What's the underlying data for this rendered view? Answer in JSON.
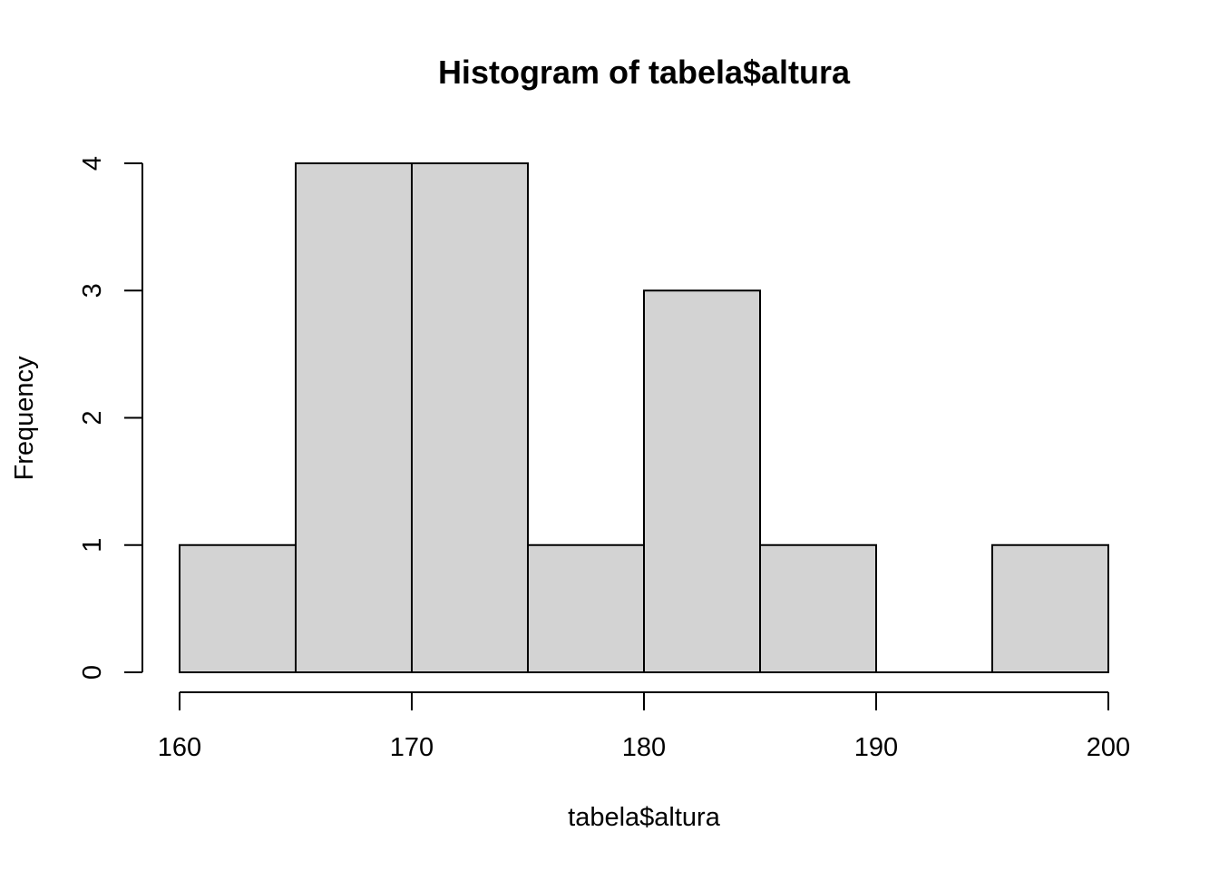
{
  "chart_data": {
    "type": "bar",
    "title": "Histogram of tabela$altura",
    "xlabel": "tabela$altura",
    "ylabel": "Frequency",
    "bins": [
      {
        "start": 160,
        "end": 165,
        "count": 1
      },
      {
        "start": 165,
        "end": 170,
        "count": 4
      },
      {
        "start": 170,
        "end": 175,
        "count": 4
      },
      {
        "start": 175,
        "end": 180,
        "count": 1
      },
      {
        "start": 180,
        "end": 185,
        "count": 3
      },
      {
        "start": 185,
        "end": 190,
        "count": 1
      },
      {
        "start": 190,
        "end": 195,
        "count": 0
      },
      {
        "start": 195,
        "end": 200,
        "count": 1
      }
    ],
    "xlim": [
      160,
      200
    ],
    "ylim": [
      0,
      4
    ],
    "x_ticks": [
      "160",
      "170",
      "180",
      "190",
      "200"
    ],
    "y_ticks": [
      "0",
      "1",
      "2",
      "3",
      "4"
    ],
    "grid": false,
    "bar_fill": "#d3d3d3",
    "bar_stroke": "#000000"
  }
}
